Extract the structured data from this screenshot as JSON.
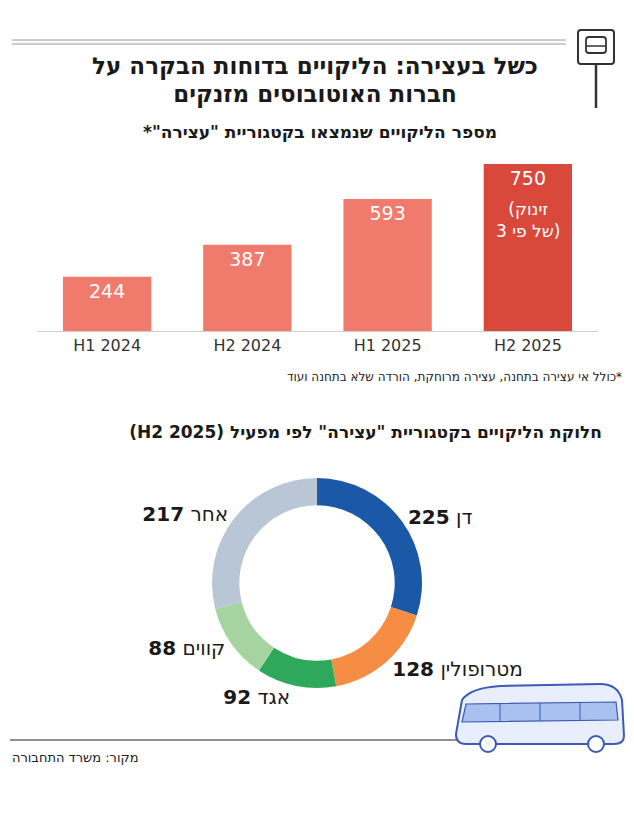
{
  "title": "כשל בעצירה: הליקויים בדוחות הבקרה על חברות האוטובוסים מזנקים",
  "source": "מקור: משרד התחבורה",
  "chart_data": [
    {
      "type": "bar",
      "title": "מספר הליקויים שנמצאו בקטגוריית \"עצירה\"*",
      "note": "*כולל אי עצירה בתחנה, עצירה מרוחקת, הורדה שלא בתחנה ועוד",
      "categories": [
        "H1 2024",
        "H2 2024",
        "H1 2025",
        "H2 2025"
      ],
      "values": [
        244,
        387,
        593,
        750
      ],
      "colors": [
        "#f07a6b",
        "#f07a6b",
        "#f07a6b",
        "#d8493c"
      ],
      "ylim": [
        0,
        750
      ],
      "tick_labels": "x",
      "grid": false,
      "data_labels": true,
      "annotations": [
        {
          "category": "H2 2025",
          "text": "(זינוק של פי 3)"
        }
      ]
    },
    {
      "type": "donut",
      "title": "חלוקת הליקויים בקטגוריית \"עצירה\" לפי מפעיל (H2 2025)",
      "categories": [
        "דן",
        "מטרופולין",
        "אגד",
        "קווים",
        "אחר"
      ],
      "values": [
        225,
        128,
        92,
        88,
        217
      ],
      "colors": [
        "#1c58a8",
        "#f58d44",
        "#2ea85a",
        "#a6d4a0",
        "#b8c6d6"
      ],
      "data_labels": true
    }
  ]
}
